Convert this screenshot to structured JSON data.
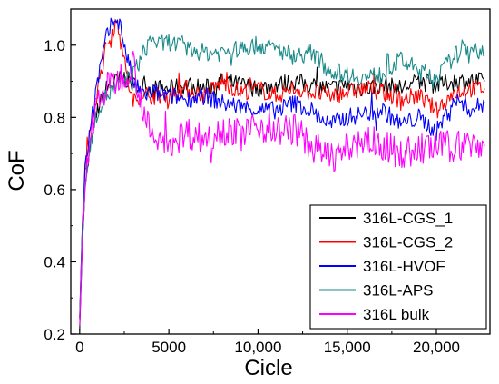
{
  "chart_data": {
    "type": "line",
    "title": "",
    "xlabel": "Cicle",
    "ylabel": "CoF",
    "xlim": [
      -500,
      23000
    ],
    "ylim": [
      0.2,
      1.1
    ],
    "grid": false,
    "legend_position": "bottom-right",
    "x_ticks": [
      {
        "value": 0,
        "label": "0"
      },
      {
        "value": 5000,
        "label": "5000"
      },
      {
        "value": 10000,
        "label": "10,000"
      },
      {
        "value": 15000,
        "label": "15,000"
      },
      {
        "value": 20000,
        "label": "20,000"
      }
    ],
    "y_ticks": [
      {
        "value": 0.2,
        "label": "0.2"
      },
      {
        "value": 0.4,
        "label": "0.4"
      },
      {
        "value": 0.6,
        "label": "0.6"
      },
      {
        "value": 0.8,
        "label": "0.8"
      },
      {
        "value": 1.0,
        "label": "1.0"
      }
    ],
    "series": [
      {
        "name": "316L-CGS_1",
        "color": "#000000",
        "x": [
          0,
          150,
          300,
          600,
          1000,
          1500,
          2000,
          2500,
          3000,
          4000,
          5000,
          6000,
          7000,
          8000,
          9000,
          10000,
          11000,
          12000,
          13000,
          14000,
          15000,
          16000,
          17000,
          18000,
          19000,
          20000,
          21000,
          22000,
          22700
        ],
        "y": [
          0.22,
          0.45,
          0.6,
          0.72,
          0.82,
          0.88,
          0.9,
          0.91,
          0.89,
          0.88,
          0.88,
          0.89,
          0.88,
          0.9,
          0.89,
          0.88,
          0.89,
          0.9,
          0.89,
          0.88,
          0.89,
          0.88,
          0.89,
          0.88,
          0.9,
          0.89,
          0.9,
          0.9,
          0.9
        ]
      },
      {
        "name": "316L-CGS_2",
        "color": "#ff0000",
        "x": [
          0,
          150,
          300,
          600,
          1000,
          1500,
          2000,
          2300,
          2600,
          3000,
          3500,
          4000,
          5000,
          6000,
          7000,
          8000,
          9000,
          10000,
          11000,
          12000,
          13000,
          14000,
          15000,
          16000,
          17000,
          18000,
          19000,
          20000,
          21000,
          22000,
          22700
        ],
        "y": [
          0.25,
          0.5,
          0.65,
          0.75,
          0.88,
          1.0,
          1.06,
          1.03,
          0.92,
          0.84,
          0.87,
          0.86,
          0.86,
          0.88,
          0.86,
          0.9,
          0.87,
          0.88,
          0.86,
          0.88,
          0.87,
          0.86,
          0.87,
          0.88,
          0.87,
          0.85,
          0.86,
          0.82,
          0.87,
          0.88,
          0.88
        ]
      },
      {
        "name": "316L-HVOF",
        "color": "#0000ff",
        "x": [
          0,
          150,
          300,
          600,
          1000,
          1500,
          2000,
          2300,
          2600,
          3000,
          3500,
          4000,
          5000,
          6000,
          7000,
          8000,
          9000,
          10000,
          11000,
          12000,
          13000,
          14000,
          15000,
          16000,
          17000,
          18000,
          19000,
          20000,
          21000,
          22000,
          22700
        ],
        "y": [
          0.25,
          0.5,
          0.66,
          0.78,
          0.9,
          1.02,
          1.08,
          1.05,
          0.98,
          0.9,
          0.86,
          0.87,
          0.86,
          0.85,
          0.86,
          0.84,
          0.83,
          0.82,
          0.82,
          0.84,
          0.82,
          0.78,
          0.8,
          0.81,
          0.82,
          0.78,
          0.8,
          0.76,
          0.85,
          0.82,
          0.84
        ]
      },
      {
        "name": "316L-APS",
        "color": "#1a8a8a",
        "x": [
          0,
          150,
          300,
          600,
          1000,
          1500,
          2000,
          2500,
          3000,
          3500,
          4000,
          4500,
          5000,
          6000,
          7000,
          8000,
          9000,
          10000,
          11000,
          12000,
          13000,
          14000,
          15000,
          16000,
          17000,
          18000,
          19000,
          20000,
          21000,
          22000,
          22700
        ],
        "y": [
          0.25,
          0.48,
          0.62,
          0.72,
          0.82,
          0.86,
          0.88,
          0.9,
          0.92,
          0.97,
          1.02,
          1.0,
          1.01,
          0.99,
          0.98,
          0.98,
          0.99,
          1.0,
          0.99,
          0.97,
          0.98,
          0.93,
          0.92,
          0.91,
          0.92,
          0.96,
          0.93,
          0.91,
          0.97,
          1.0,
          0.97
        ]
      },
      {
        "name": "316L bulk",
        "color": "#ff00ff",
        "x": [
          0,
          150,
          300,
          600,
          1000,
          1500,
          2000,
          2500,
          3000,
          3500,
          4000,
          5000,
          6000,
          7000,
          8000,
          9000,
          10000,
          11000,
          12000,
          13000,
          14000,
          15000,
          16000,
          17000,
          18000,
          19000,
          20000,
          21000,
          22000,
          22700
        ],
        "y": [
          0.22,
          0.45,
          0.6,
          0.75,
          0.85,
          0.88,
          0.9,
          0.92,
          0.95,
          0.84,
          0.74,
          0.73,
          0.76,
          0.74,
          0.77,
          0.75,
          0.78,
          0.76,
          0.77,
          0.72,
          0.69,
          0.71,
          0.74,
          0.72,
          0.7,
          0.71,
          0.72,
          0.72,
          0.73,
          0.72
        ]
      }
    ]
  }
}
